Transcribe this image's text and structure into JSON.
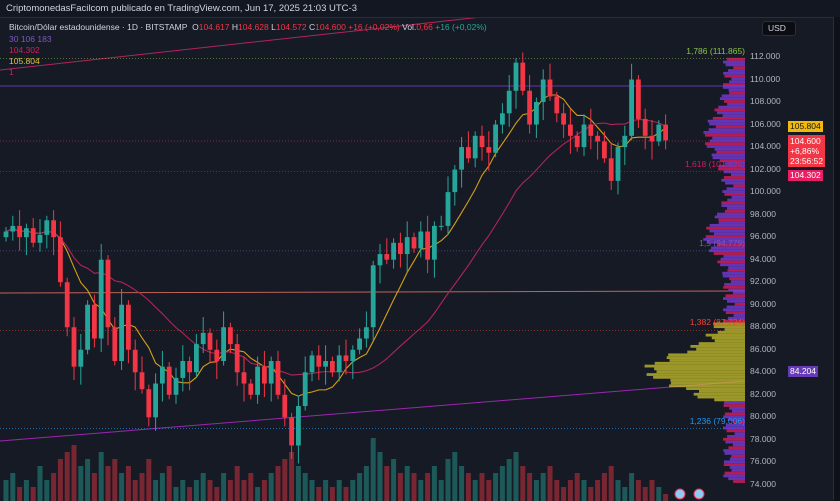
{
  "header": {
    "publisher": "CriptomonedasFacilcom publicado en TradingView.com, Jun 17, 2025 21:03 UTC-3"
  },
  "legend": {
    "symbol": "Bitcoin/Dólar estadounidense · 1D · BITSTAMP",
    "o_label": "O",
    "o": "104.617",
    "h_label": "H",
    "h": "104.628",
    "l_label": "L",
    "l": "104.572",
    "c_label": "C",
    "c": "104.600",
    "change": "+16 (+0,02%)",
    "vol_label": "Vol.",
    "vol": "0,66",
    "vol_change": "+16 (+0,02%)",
    "ind1": "30  106  183",
    "ind2": "104.302",
    "ind3": "105.804",
    "ind4": "1"
  },
  "currency_button": "USD",
  "colors": {
    "up": "#26a69a",
    "down": "#f23645",
    "ma_fast": "#d4a017",
    "ma_slow": "#b2245a",
    "bg": "#161a25",
    "profile_purple": "#7b3fe4",
    "profile_pink": "#e91e63",
    "profile_yellow": "#c8c22a"
  },
  "chart_data": {
    "type": "candlestick",
    "ylim": [
      74,
      112
    ],
    "y_ticks": [
      "112.000",
      "110.000",
      "108.000",
      "106.000",
      "104.000",
      "102.000",
      "100.000",
      "98.000",
      "96.000",
      "94.000",
      "92.000",
      "90.000",
      "88.000",
      "86.000",
      "84.000",
      "82.000",
      "80.000",
      "78.000",
      "76.000",
      "74.000"
    ],
    "tick_values": [
      112,
      110,
      108,
      106,
      104,
      102,
      100,
      98,
      96,
      94,
      92,
      90,
      88,
      86,
      84,
      82,
      80,
      78,
      76,
      74
    ],
    "closes": [
      96.5,
      97,
      96,
      96.8,
      95.5,
      96.2,
      97.5,
      96,
      92,
      88,
      84.5,
      86,
      90,
      87,
      94,
      88,
      85,
      90,
      86,
      84,
      82.5,
      80,
      83,
      84.5,
      82,
      83.5,
      85,
      84,
      86.5,
      87.5,
      86,
      85,
      88,
      86.5,
      84,
      83,
      82,
      84.5,
      83,
      85,
      82,
      80,
      77.5,
      81,
      84,
      85.5,
      84.5,
      85,
      84,
      85.5,
      85,
      86,
      87,
      88,
      93.5,
      94.5,
      94,
      95.5,
      94.5,
      96,
      95,
      96.5,
      94,
      97,
      97,
      100,
      102,
      104,
      103,
      105,
      104,
      103.5,
      106,
      107,
      109,
      111.5,
      109,
      106,
      108,
      110,
      108.5,
      107,
      106,
      105,
      104,
      106,
      105,
      104.5,
      103,
      101,
      104,
      105,
      110,
      106.5,
      105,
      104.5,
      106,
      104.6
    ],
    "volumes": [
      3,
      4,
      2,
      3,
      2,
      5,
      3,
      4,
      6,
      7,
      8,
      5,
      6,
      4,
      7,
      5,
      6,
      4,
      5,
      3,
      4,
      6,
      3,
      4,
      5,
      2,
      3,
      2,
      3,
      4,
      3,
      2,
      4,
      3,
      5,
      3,
      4,
      2,
      3,
      4,
      5,
      6,
      7,
      5,
      4,
      3,
      2,
      3,
      2,
      3,
      2,
      3,
      4,
      5,
      9,
      7,
      5,
      6,
      4,
      5,
      4,
      3,
      4,
      5,
      3,
      6,
      7,
      5,
      4,
      3,
      4,
      3,
      4,
      5,
      6,
      7,
      5,
      4,
      3,
      4,
      5,
      3,
      2,
      3,
      4,
      3,
      2,
      3,
      4,
      5,
      3,
      2,
      4,
      3,
      2,
      3,
      2,
      1
    ],
    "price_tags": {
      "last": "104.600",
      "change": "+6,86%",
      "countdown": "23:56:52",
      "ma1": "105.804",
      "ma2": "104.302",
      "poc": "84.204"
    },
    "fib_levels": [
      {
        "label": "1,786 (111.865)",
        "price": 111.865,
        "color": "#8bc34a"
      },
      {
        "label": "1,618 (101.826)",
        "price": 101.826,
        "color": "#d81b60"
      },
      {
        "label": "1,5 (94.779)",
        "price": 94.78,
        "color": "#7e57c2"
      },
      {
        "label": "1,382 (87.724)",
        "price": 87.72,
        "color": "#f44336"
      },
      {
        "label": "1,236 (79.006)",
        "price": 79.0,
        "color": "#2196f3"
      }
    ]
  }
}
